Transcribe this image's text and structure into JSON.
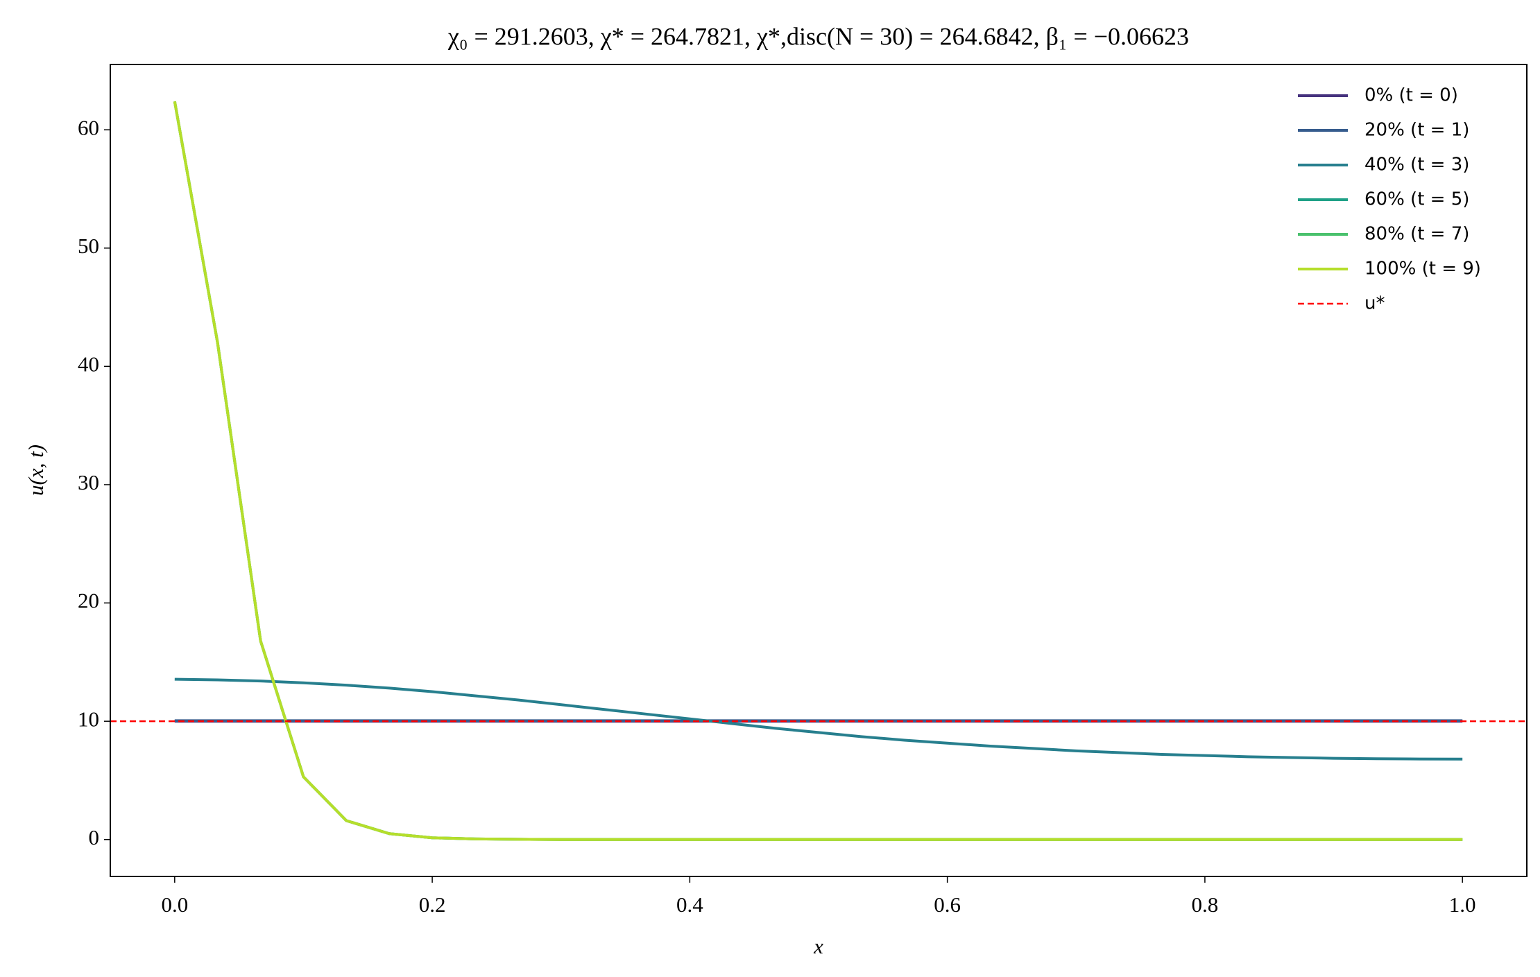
{
  "chart_data": {
    "type": "line",
    "title": "χ₀ = 291.2603,  χ* = 264.7821,  χ*,disc(N = 30) = 264.6842,  β₁ = −0.06623",
    "x_label": "x",
    "y_label": "u(x, t)",
    "x": [
      0,
      0.0333,
      0.0667,
      0.1,
      0.1333,
      0.1667,
      0.2,
      0.2333,
      0.2667,
      0.3,
      0.3333,
      0.3667,
      0.4,
      0.4333,
      0.4667,
      0.5,
      0.5333,
      0.5667,
      0.6,
      0.6333,
      0.6667,
      0.7,
      0.7333,
      0.7667,
      0.8,
      0.8333,
      0.8667,
      0.9,
      0.9333,
      0.9667,
      1
    ],
    "series": [
      {
        "name": "0% (t = 0)",
        "color": "#46327e",
        "values": [
          10,
          10,
          10,
          10,
          10,
          10,
          10,
          10,
          10,
          10,
          10,
          10,
          10,
          10,
          10,
          10,
          10,
          10,
          10,
          10,
          10,
          10,
          10,
          10,
          10,
          10,
          10,
          10,
          10,
          10,
          10
        ]
      },
      {
        "name": "20% (t = 1)",
        "color": "#365c8d",
        "values": [
          10.05,
          10.05,
          10.05,
          10.05,
          10.05,
          10.05,
          10.05,
          10.05,
          10.05,
          10.05,
          10.05,
          10.05,
          10.05,
          10.05,
          10.05,
          10.05,
          10.05,
          10.05,
          10.05,
          10.05,
          10.05,
          10.05,
          10.05,
          10.05,
          10.05,
          10.05,
          10.05,
          10.05,
          10.05,
          10.05,
          10.05
        ]
      },
      {
        "name": "40% (t = 3)",
        "color": "#277f8e",
        "values": [
          13.55,
          13.5,
          13.4,
          13.25,
          13.05,
          12.8,
          12.5,
          12.15,
          11.8,
          11.4,
          11.0,
          10.6,
          10.2,
          9.8,
          9.4,
          9.05,
          8.7,
          8.4,
          8.15,
          7.9,
          7.7,
          7.5,
          7.35,
          7.2,
          7.1,
          7.0,
          6.93,
          6.87,
          6.83,
          6.81,
          6.8
        ]
      },
      {
        "name": "60% (t = 5)",
        "color": "#1fa187",
        "values": [
          62.4,
          42,
          16.8,
          5.3,
          1.6,
          0.5,
          0.15,
          0.05,
          0.02,
          0,
          0,
          0,
          0,
          0,
          0,
          0,
          0,
          0,
          0,
          0,
          0,
          0,
          0,
          0,
          0,
          0,
          0,
          0,
          0,
          0,
          0
        ]
      },
      {
        "name": "80% (t = 7)",
        "color": "#4ac16d",
        "values": [
          62.4,
          42,
          16.8,
          5.3,
          1.6,
          0.5,
          0.15,
          0.05,
          0.02,
          0,
          0,
          0,
          0,
          0,
          0,
          0,
          0,
          0,
          0,
          0,
          0,
          0,
          0,
          0,
          0,
          0,
          0,
          0,
          0,
          0,
          0
        ]
      },
      {
        "name": "100% (t = 9)",
        "color": "#b5de2b",
        "values": [
          62.4,
          42,
          16.8,
          5.3,
          1.6,
          0.5,
          0.15,
          0.05,
          0.02,
          0,
          0,
          0,
          0,
          0,
          0,
          0,
          0,
          0,
          0,
          0,
          0,
          0,
          0,
          0,
          0,
          0,
          0,
          0,
          0,
          0,
          0
        ]
      }
    ],
    "reference_line": {
      "name": "u*",
      "value": 10,
      "color": "#ff0000",
      "style": "dashed"
    },
    "xlim": [
      -0.05,
      1.05
    ],
    "xticks": [
      {
        "value": 0,
        "label": "0.0"
      },
      0.2,
      0.4,
      0.6,
      0.8,
      {
        "value": 1,
        "label": "1.0"
      }
    ],
    "ylim": [
      -3.12,
      65.52
    ],
    "yticks": [
      0,
      10,
      20,
      30,
      40,
      50,
      60
    ],
    "grid": false,
    "legend": "upper right"
  }
}
